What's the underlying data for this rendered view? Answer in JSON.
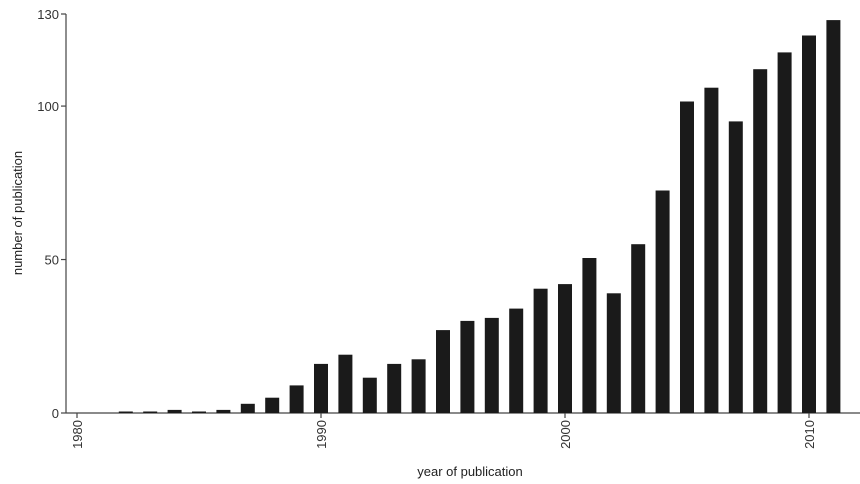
{
  "chart_data": {
    "type": "bar",
    "title": "",
    "xlabel": "year of publication",
    "ylabel": "number of publication",
    "x": [
      1982,
      1983,
      1984,
      1985,
      1986,
      1987,
      1988,
      1989,
      1990,
      1991,
      1992,
      1993,
      1994,
      1995,
      1996,
      1997,
      1998,
      1999,
      2000,
      2001,
      2002,
      2003,
      2004,
      2005,
      2006,
      2007,
      2008,
      2009,
      2010,
      2011,
      2012
    ],
    "values": [
      0.5,
      0.5,
      1,
      0.5,
      1,
      3,
      5,
      9,
      16,
      19,
      11.5,
      16,
      17.5,
      27,
      30,
      31,
      34,
      40.5,
      42,
      50.5,
      39,
      55,
      72.5,
      101.5,
      106,
      95,
      112,
      117.5,
      123,
      128,
      0
    ],
    "ylim": [
      0,
      136
    ],
    "yticks": [
      0,
      50,
      100,
      130
    ],
    "ytick_labels": [
      "0",
      "50",
      "100",
      "130"
    ],
    "xticks": [
      1980,
      1990,
      2000,
      2010
    ],
    "xtick_labels": [
      "1980",
      "1990",
      "2000",
      "2010"
    ],
    "bar_color": "#1a1a1a",
    "grid": false,
    "legend": "none"
  }
}
